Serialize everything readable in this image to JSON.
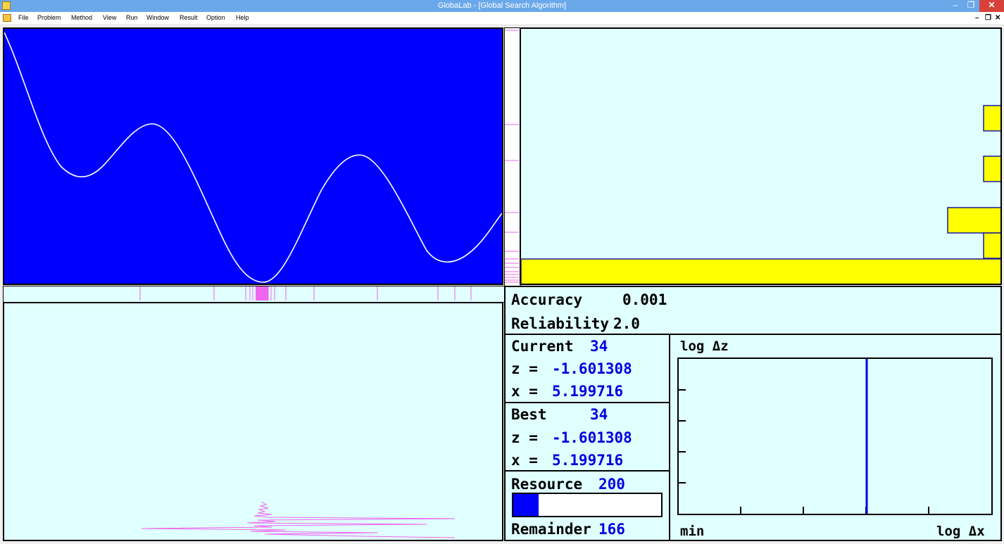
{
  "window": {
    "title": "GlobaLab - [Global Search Algorithm]",
    "min_glyph": "–",
    "max_glyph": "❐",
    "close_glyph": "✕",
    "mdi_min_glyph": "–",
    "mdi_restore_glyph": "❐",
    "mdi_close_glyph": "✕"
  },
  "menu": [
    "File",
    "Problem",
    "Method",
    "View",
    "Run",
    "Window",
    "Result",
    "Option",
    "Help"
  ],
  "colors": {
    "plot_background": "#0000ff",
    "curve": "#ffffff",
    "panel_background": "#e0ffff",
    "histogram_bar": "#ffff00",
    "trial_marks": "#ee66ee",
    "value_text": "#0000e0"
  },
  "info": {
    "accuracy_label": "Accuracy",
    "accuracy_value": "0.001",
    "reliability_label": "Reliability",
    "reliability_value": "2.0",
    "current_label": "Current",
    "current_value": "34",
    "current_z_label": "z =",
    "current_z": "-1.601308",
    "current_x_label": "x =",
    "current_x": "5.199716",
    "best_label": "Best",
    "best_value": "34",
    "best_z_label": "z =",
    "best_z": "-1.601308",
    "best_x_label": "x =",
    "best_x": "5.199716",
    "resource_label": "Resource",
    "resource_value": "200",
    "resource_progress": 0.17,
    "remainder_label": "Remainder",
    "remainder_value": "166"
  },
  "log_chart": {
    "y_label": "log Δz",
    "x_min_label": "min",
    "x_label": "log Δx"
  }
}
